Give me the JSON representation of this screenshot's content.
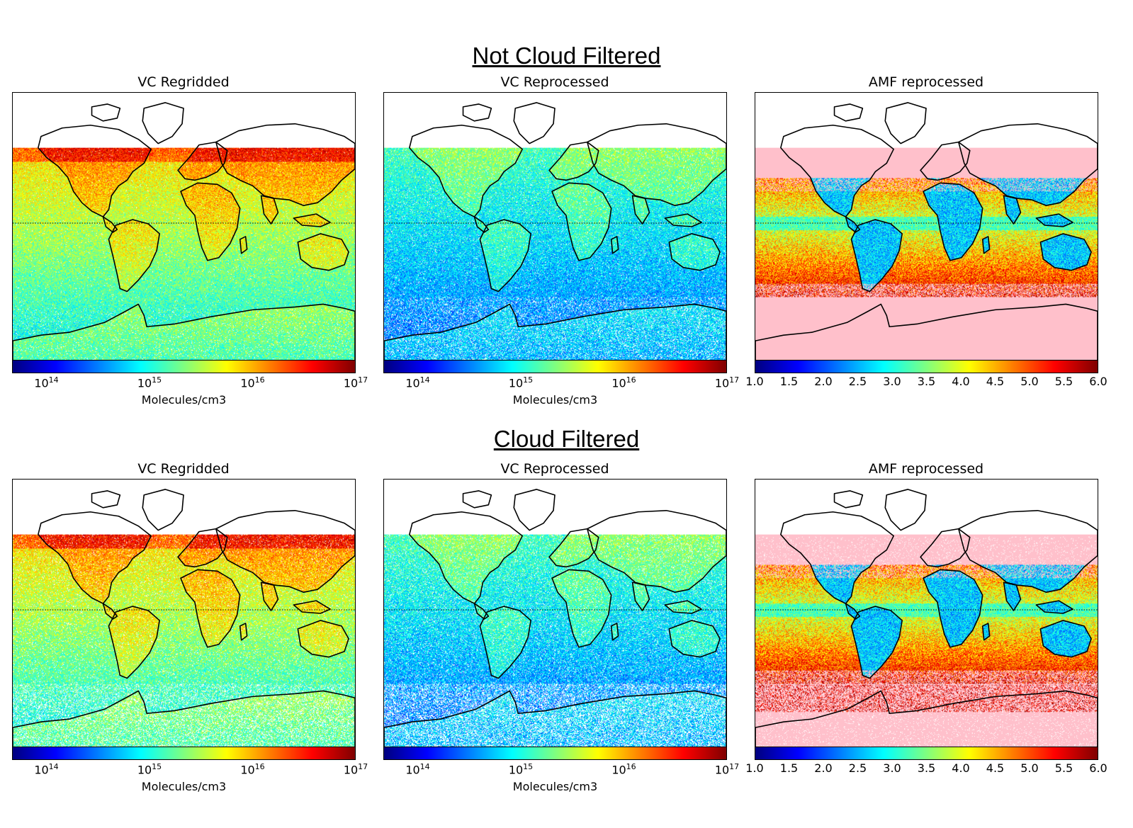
{
  "sections": [
    {
      "title": "Not Cloud Filtered",
      "panels": [
        {
          "title": "VC Regridded",
          "kind": "vc",
          "variant": "regridded",
          "cloud_filtered": false,
          "colorbar_ticks": [
            {
              "base": "10",
              "exp": "14"
            },
            {
              "base": "10",
              "exp": "15"
            },
            {
              "base": "10",
              "exp": "16"
            },
            {
              "base": "10",
              "exp": "17"
            }
          ],
          "colorbar_label": "Molecules/cm3"
        },
        {
          "title": "VC Reprocessed",
          "kind": "vc",
          "variant": "reprocessed",
          "cloud_filtered": false,
          "colorbar_ticks": [
            {
              "base": "10",
              "exp": "14"
            },
            {
              "base": "10",
              "exp": "15"
            },
            {
              "base": "10",
              "exp": "16"
            },
            {
              "base": "10",
              "exp": "17"
            }
          ],
          "colorbar_label": "Molecules/cm3"
        },
        {
          "title": "AMF reprocessed",
          "kind": "amf",
          "variant": "amf",
          "cloud_filtered": false,
          "colorbar_ticks": [
            "1.0",
            "1.5",
            "2.0",
            "2.5",
            "3.0",
            "3.5",
            "4.0",
            "4.5",
            "5.0",
            "5.5",
            "6.0"
          ],
          "colorbar_label": ""
        }
      ]
    },
    {
      "title": "Cloud Filtered",
      "panels": [
        {
          "title": "VC Regridded",
          "kind": "vc",
          "variant": "regridded",
          "cloud_filtered": true,
          "colorbar_ticks": [
            {
              "base": "10",
              "exp": "14"
            },
            {
              "base": "10",
              "exp": "15"
            },
            {
              "base": "10",
              "exp": "16"
            },
            {
              "base": "10",
              "exp": "17"
            }
          ],
          "colorbar_label": "Molecules/cm3"
        },
        {
          "title": "VC Reprocessed",
          "kind": "vc",
          "variant": "reprocessed",
          "cloud_filtered": true,
          "colorbar_ticks": [
            {
              "base": "10",
              "exp": "14"
            },
            {
              "base": "10",
              "exp": "15"
            },
            {
              "base": "10",
              "exp": "16"
            },
            {
              "base": "10",
              "exp": "17"
            }
          ],
          "colorbar_label": "Molecules/cm3"
        },
        {
          "title": "AMF reprocessed",
          "kind": "amf",
          "variant": "amf",
          "cloud_filtered": true,
          "colorbar_ticks": [
            "1.0",
            "1.5",
            "2.0",
            "2.5",
            "3.0",
            "3.5",
            "4.0",
            "4.5",
            "5.0",
            "5.5",
            "6.0"
          ],
          "colorbar_label": ""
        }
      ]
    }
  ],
  "colormap": [
    "#00007f",
    "#0000ff",
    "#007fff",
    "#00ffff",
    "#7fff7f",
    "#ffff00",
    "#ff7f00",
    "#ff0000",
    "#7f0000"
  ],
  "colors": {
    "no_data_amf": "#ffc0cb",
    "coastline": "#000000",
    "background": "#ffffff"
  },
  "map": {
    "projection": "Mercator",
    "data_lat_max": 75,
    "data_lat_min": -80,
    "equator_line": "dotted"
  }
}
